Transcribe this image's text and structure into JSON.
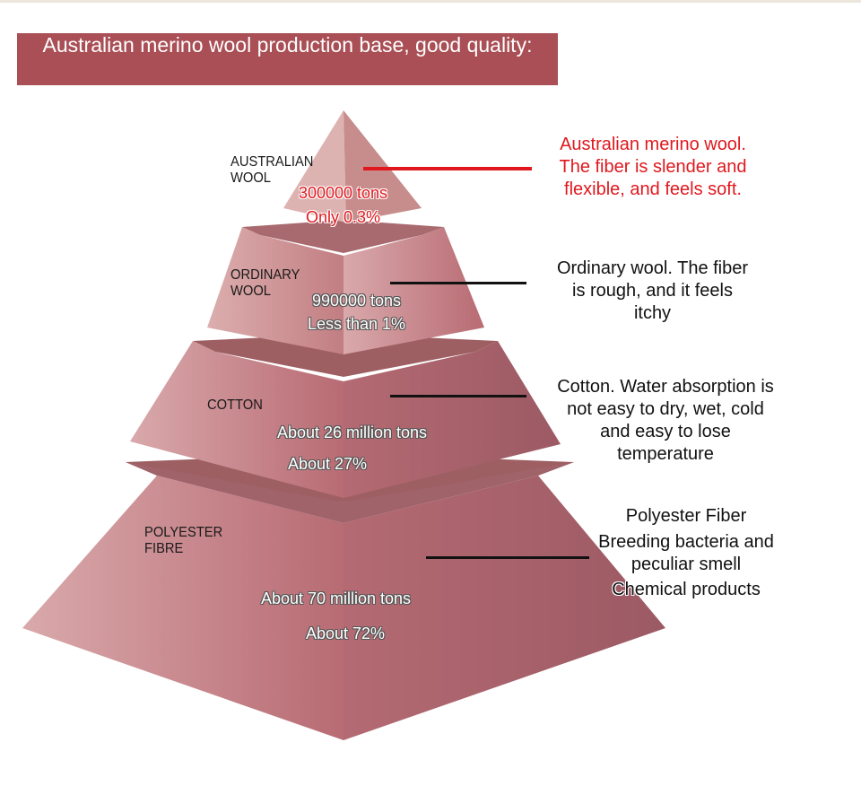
{
  "title": "Australian merino wool production base, good quality:",
  "colors": {
    "banner": "#a94f55",
    "pyramid": "#b86e75",
    "highlight": "#e0181e"
  },
  "tiers": [
    {
      "label": [
        "AUSTRALIAN",
        "WOOL"
      ],
      "amount": "300000 tons",
      "share": "Only 0.3%",
      "description": [
        "Australian merino wool.",
        "The fiber is slender and",
        "flexible, and feels soft."
      ]
    },
    {
      "label": [
        "ORDINARY",
        "WOOL"
      ],
      "amount": "990000 tons",
      "share": "Less than 1%",
      "description": [
        "Ordinary wool. The fiber",
        "is rough, and it feels",
        "itchy"
      ]
    },
    {
      "label": [
        "COTTON"
      ],
      "amount": "About 26 million tons",
      "share": "About 27%",
      "description": [
        "Cotton. Water absorption is",
        "not easy to dry, wet, cold",
        "and easy to lose",
        "temperature"
      ]
    },
    {
      "label": [
        "POLYESTER",
        "FIBRE"
      ],
      "amount": "About 70 million tons",
      "share": "About 72%",
      "description": [
        "Polyester Fiber",
        "Breeding bacteria and",
        "peculiar smell",
        "Chemical products"
      ]
    }
  ]
}
